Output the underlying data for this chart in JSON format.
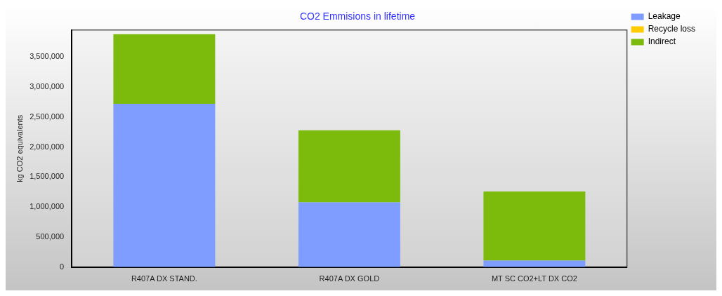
{
  "chart_data": {
    "type": "bar",
    "title": "CO2 Emmisions in lifetime",
    "ylabel": "kg CO2 equivalents",
    "categories": [
      "R407A DX STAND.",
      "R407A DX GOLD",
      "MT SC CO2+LT DX CO2"
    ],
    "stacked": true,
    "series": [
      {
        "name": "Leakage",
        "color": "#7f9cff",
        "values": [
          2720000,
          1080000,
          110000
        ]
      },
      {
        "name": "Recycle loss",
        "color": "#ffcc00",
        "values": [
          0,
          0,
          0
        ]
      },
      {
        "name": "Indirect",
        "color": "#7cba0c",
        "values": [
          1160000,
          1200000,
          1150000
        ]
      }
    ],
    "ylim": [
      0,
      3950000
    ],
    "yticks": [
      {
        "value": 0,
        "label": "0"
      },
      {
        "value": 500000,
        "label": "500,000"
      },
      {
        "value": 1000000,
        "label": "1,000,000"
      },
      {
        "value": 1500000,
        "label": "1,500,000"
      },
      {
        "value": 2000000,
        "label": "2,000,000"
      },
      {
        "value": 2500000,
        "label": "2,500,000"
      },
      {
        "value": 3000000,
        "label": "3,000,000"
      },
      {
        "value": 3500000,
        "label": "3,500,000"
      }
    ],
    "grid": false,
    "legend": "top right"
  }
}
